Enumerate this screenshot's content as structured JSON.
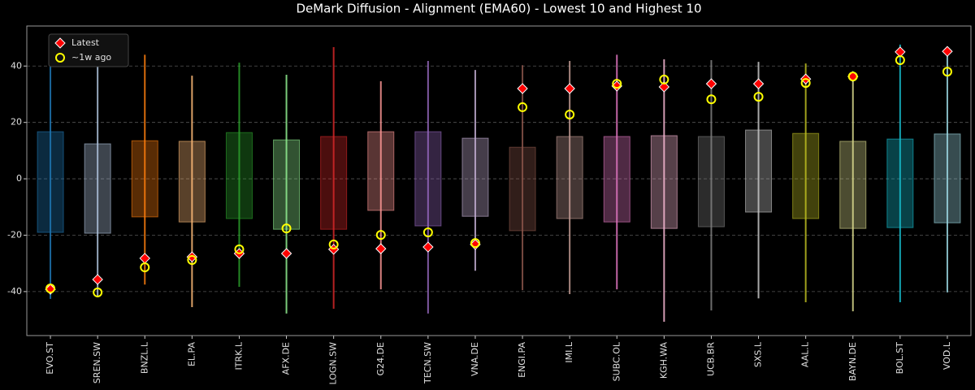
{
  "chart_data": {
    "type": "range-box",
    "title": "DeMark Diffusion - Alignment (EMA60) - Lowest 10 and Highest 10",
    "categories": [
      "EVO.ST",
      "SREN.SW",
      "BNZL.L",
      "EL.PA",
      "ITRK.L",
      "AFX.DE",
      "LOGN.SW",
      "G24.DE",
      "TECN.SW",
      "VNA.DE",
      "ENGI.PA",
      "IMI.L",
      "SUBC.OL",
      "KGH.WA",
      "UCB.BR",
      "SXS.L",
      "AAL.L",
      "BAYN.DE",
      "BOL.ST",
      "VOD.L"
    ],
    "colors": [
      "#1f77b4",
      "#b0c4de",
      "#ff7f0e",
      "#ffbb78",
      "#2ca02c",
      "#90ee90",
      "#d62728",
      "#ff9896",
      "#9467bd",
      "#c5b0d5",
      "#8c564b",
      "#c49c94",
      "#e377c2",
      "#f7b6d2",
      "#7f7f7f",
      "#c7c7c7",
      "#bcbd22",
      "#dbdb8d",
      "#17becf",
      "#9edae5"
    ],
    "range_low": [
      -42.6,
      -42,
      -37.5,
      -45.5,
      -38.3,
      -47.8,
      -46.1,
      -39.2,
      -47.8,
      -32.6,
      -39.5,
      -40.9,
      -39.2,
      -50.7,
      -46.7,
      -42.4,
      -43.8,
      -47,
      -43.8,
      -40.3
    ],
    "range_high": [
      49.6,
      46,
      44,
      36.6,
      41.2,
      36.9,
      46.7,
      34.6,
      41.8,
      38.6,
      40.3,
      41.8,
      44,
      42.4,
      42.1,
      41.5,
      40.9,
      36.3,
      47.6,
      46.1
    ],
    "box_low": [
      -19,
      -19.3,
      -13.5,
      -15.3,
      -14.1,
      -17.9,
      -17.9,
      -11.2,
      -16.7,
      -13.3,
      -18.4,
      -14.1,
      -15.3,
      -17.6,
      -17,
      -11.8,
      -14.1,
      -17.6,
      -17.3,
      -15.6
    ],
    "box_high": [
      16.7,
      12.4,
      13.5,
      13.3,
      16.4,
      13.8,
      15,
      16.7,
      16.7,
      14.4,
      11.2,
      15,
      15,
      15.3,
      15,
      17.3,
      16.1,
      13.3,
      14.1,
      15.9
    ],
    "series": [
      {
        "name": "Latest",
        "color": "#ff0000",
        "marker": "diamond",
        "values": [
          -39.2,
          -35.7,
          -28.2,
          -27.7,
          -26.5,
          -26.5,
          -25,
          -24.8,
          -24.2,
          -23.3,
          32,
          32,
          32.9,
          32.6,
          33.7,
          33.7,
          35.4,
          36.3,
          45,
          45.2
        ]
      },
      {
        "name": "~1w ago",
        "color": "#ffff00",
        "marker": "circle",
        "values": [
          -38.9,
          -40.3,
          -31.4,
          -28.8,
          -25,
          -17.6,
          -23.3,
          -19.9,
          -19,
          -22.8,
          25.4,
          22.8,
          33.7,
          35.2,
          28.2,
          29.1,
          34,
          36.3,
          42.1,
          38
        ]
      }
    ],
    "ylim": [
      -55.6,
      54.2
    ],
    "yticks": [
      -40,
      -20,
      0,
      20,
      40
    ],
    "grid": true,
    "legend": "upper left"
  }
}
